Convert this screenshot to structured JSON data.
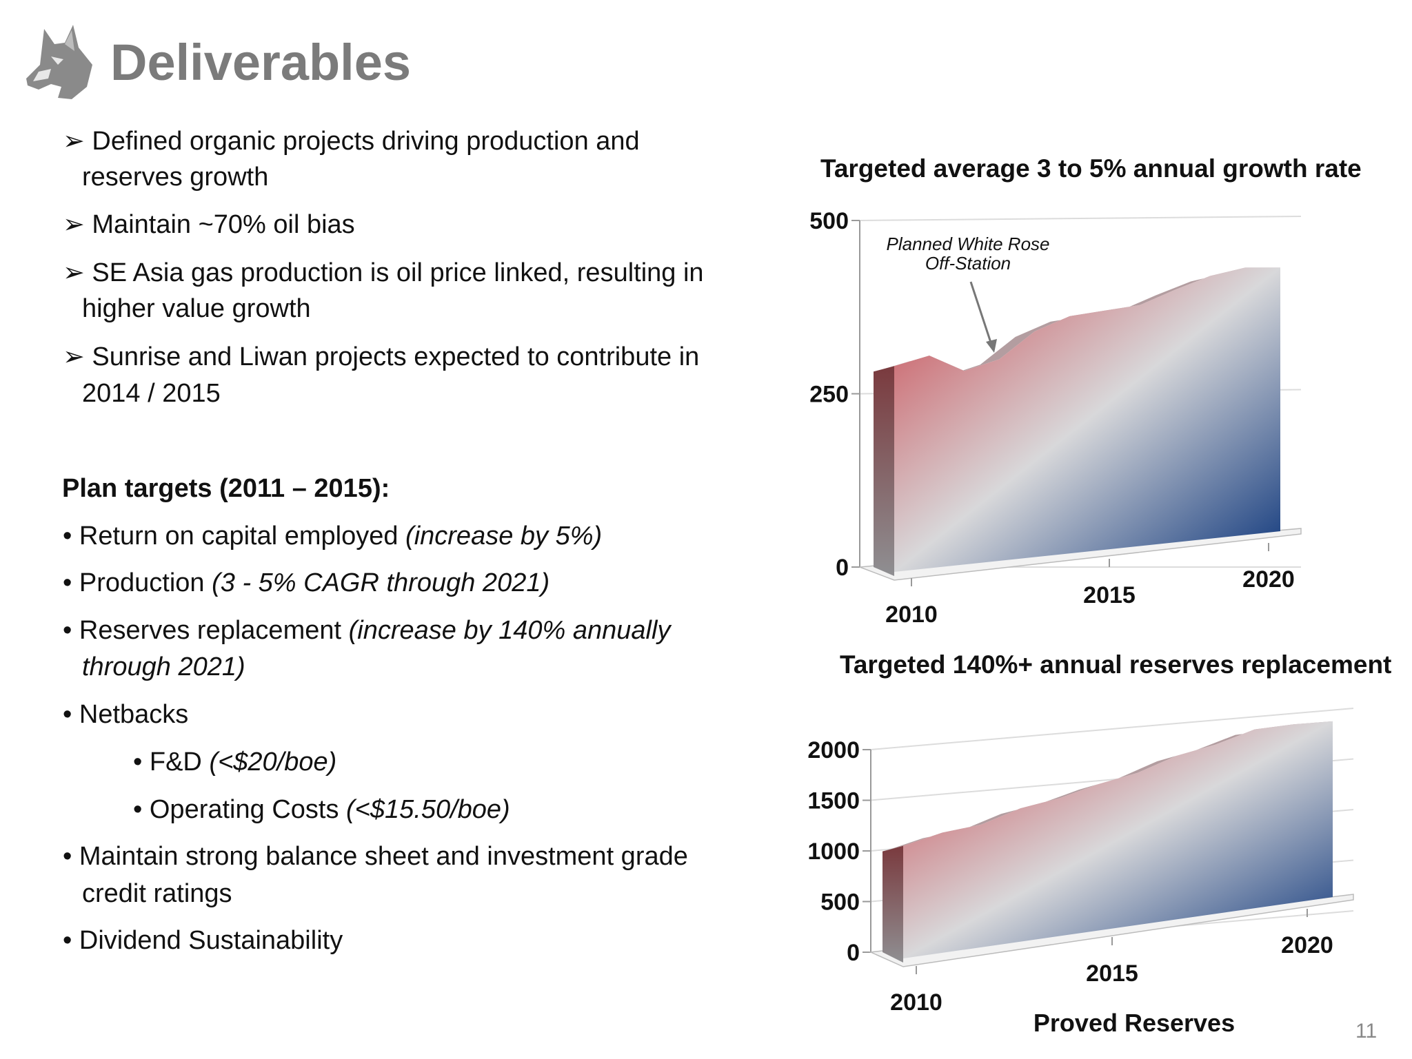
{
  "header": {
    "title": "Deliverables",
    "logo": "husky-dog-head-logo"
  },
  "bullets": [
    {
      "lines": [
        "Defined organic projects driving production and",
        "reserves growth"
      ]
    },
    {
      "lines": [
        "Maintain ~70% oil bias"
      ]
    },
    {
      "lines": [
        "SE Asia gas production is oil price linked, resulting in",
        "higher value growth"
      ]
    },
    {
      "lines": [
        "Sunrise and Liwan projects expected to contribute in",
        "2014 / 2015"
      ]
    }
  ],
  "plan": {
    "heading": "Plan targets (2011 – 2015):",
    "items": [
      {
        "text": "Return on capital employed ",
        "note": "(increase by 5%)"
      },
      {
        "text": "Production ",
        "note": "(3 - 5% CAGR through 2021)"
      },
      {
        "text": "Reserves replacement ",
        "note": "(increase by 140% annually",
        "note2": "through 2021)"
      },
      {
        "text": "Netbacks"
      },
      {
        "text": "F&D ",
        "note": "(<$20/boe)",
        "sub": true
      },
      {
        "text": "Operating Costs ",
        "note": "(<$15.50/boe)",
        "sub": true
      },
      {
        "text": "Maintain strong balance sheet and investment grade",
        "text2": "credit ratings"
      },
      {
        "text": "Dividend Sustainability"
      }
    ]
  },
  "page_number": "11",
  "chart_data": [
    {
      "type": "area",
      "title": "Targeted average 3 to 5% annual growth rate",
      "x": [
        2010,
        2011,
        2012,
        2013,
        2014,
        2015,
        2016,
        2017,
        2018,
        2019,
        2020,
        2021
      ],
      "values": [
        290,
        305,
        283,
        300,
        340,
        362,
        370,
        378,
        400,
        420,
        432,
        432
      ],
      "xticks": [
        "2010",
        "2015",
        "2020"
      ],
      "yticks": [
        "0",
        "250",
        "500"
      ],
      "ylim": [
        0,
        500
      ],
      "annotation": {
        "lines": [
          "Planned White Rose",
          "Off-Station"
        ],
        "x": 2012
      },
      "style": "3d-gradient",
      "colors": {
        "top_left": "#c9474f",
        "middle": "#d8d8da",
        "bottom_right": "#0b347a"
      }
    },
    {
      "type": "area",
      "title": "Targeted 140%+ annual reserves replacement",
      "xlabel": "Proved Reserves",
      "x": [
        2010,
        2011,
        2012,
        2013,
        2014,
        2015,
        2016,
        2017,
        2018,
        2019,
        2020,
        2021
      ],
      "values": [
        1050,
        1180,
        1260,
        1420,
        1520,
        1660,
        1770,
        1940,
        2050,
        2200,
        2250,
        2280
      ],
      "xticks": [
        "2010",
        "2015",
        "2020"
      ],
      "yticks": [
        "0",
        "500",
        "1000",
        "1500",
        "2000"
      ],
      "ylim": [
        0,
        2000
      ],
      "style": "3d-gradient",
      "colors": {
        "top_left": "#c9474f",
        "middle": "#d8d8da",
        "bottom_right": "#0b347a"
      }
    }
  ]
}
